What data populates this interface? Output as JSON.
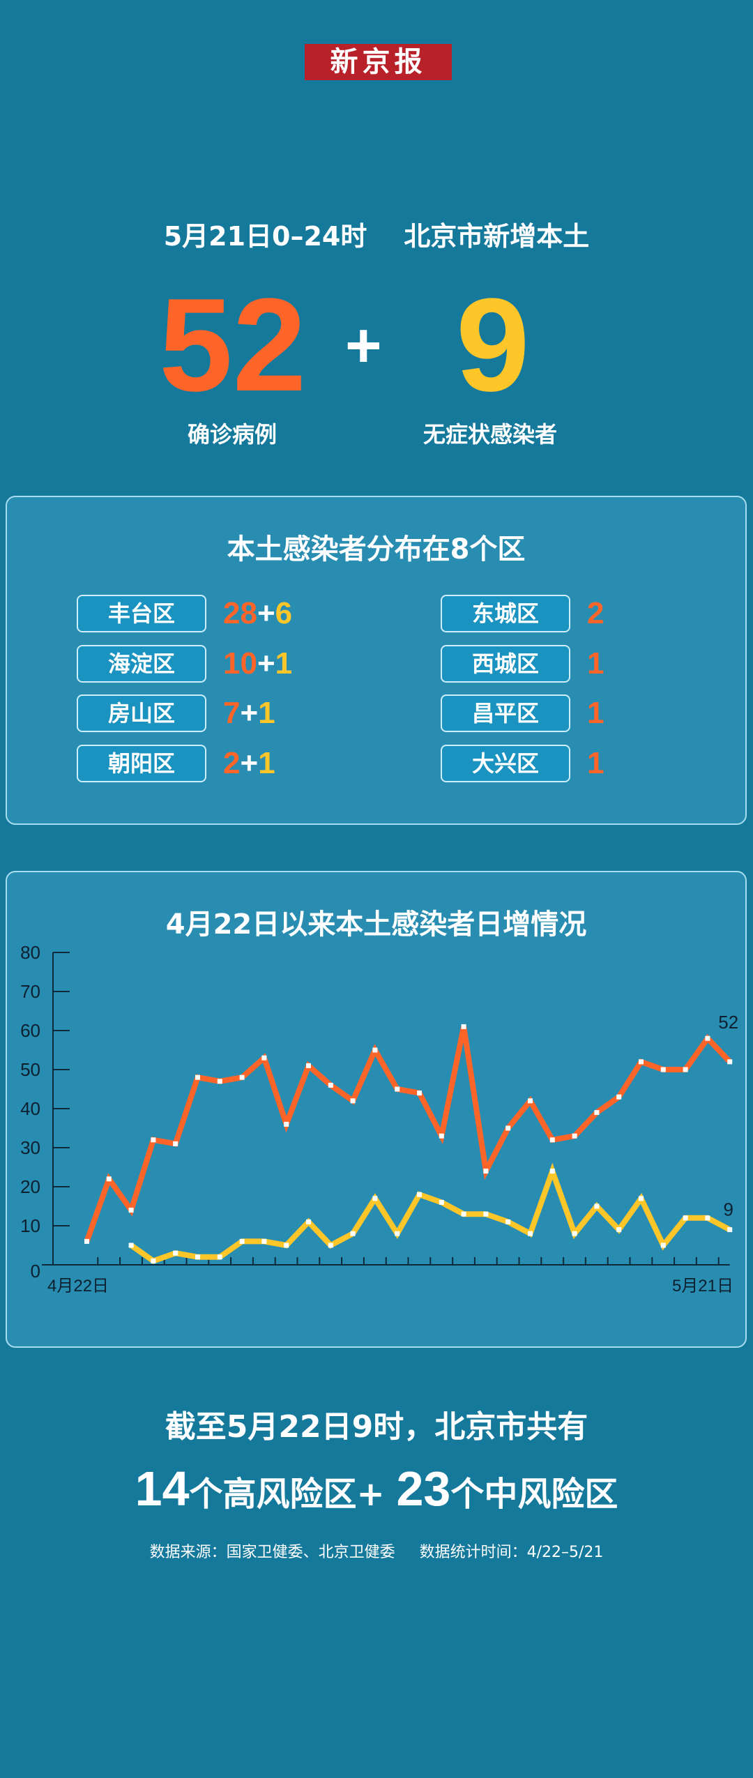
{
  "logo": "新京报",
  "header": {
    "time": "5月21日0–24时",
    "subject": "北京市新增本土"
  },
  "totals": {
    "confirmed": "52",
    "confirmed_label": "确诊病例",
    "plus": "+",
    "asymptomatic": "9",
    "asymptomatic_label": "无症状感染者"
  },
  "distribution": {
    "title": "本土感染者分布在8个区",
    "left": [
      {
        "name": "丰台区",
        "confirmed": "28",
        "asymptomatic": "6"
      },
      {
        "name": "海淀区",
        "confirmed": "10",
        "asymptomatic": "1"
      },
      {
        "name": "房山区",
        "confirmed": "7",
        "asymptomatic": "1"
      },
      {
        "name": "朝阳区",
        "confirmed": "2",
        "asymptomatic": "1"
      }
    ],
    "right": [
      {
        "name": "东城区",
        "confirmed": "2"
      },
      {
        "name": "西城区",
        "confirmed": "1"
      },
      {
        "name": "昌平区",
        "confirmed": "1"
      },
      {
        "name": "大兴区",
        "confirmed": "1"
      }
    ],
    "plus": "+"
  },
  "chart_data": {
    "type": "line",
    "title": "4月22日以来本土感染者日增情况",
    "x_labels": [
      "4月22日",
      "5月21日"
    ],
    "ylim": [
      0,
      80
    ],
    "yticks": [
      "0",
      "10",
      "20",
      "30",
      "40",
      "50",
      "60",
      "70",
      "80"
    ],
    "grid": false,
    "series": [
      {
        "color": "#ff6428",
        "start_index": 0,
        "end_label": "52",
        "values": [
          6,
          22,
          14,
          32,
          31,
          48,
          47,
          48,
          53,
          36,
          51,
          46,
          42,
          55,
          45,
          44,
          33,
          61,
          24,
          35,
          42,
          32,
          33,
          39,
          43,
          52,
          50,
          50,
          58,
          52
        ]
      },
      {
        "color": "#ffc629",
        "start_index": 2,
        "end_label": "9",
        "values": [
          5,
          1,
          3,
          2,
          2,
          6,
          6,
          5,
          11,
          5,
          8,
          17,
          8,
          18,
          16,
          13,
          13,
          11,
          8,
          24,
          8,
          15,
          9,
          17,
          5,
          12,
          12,
          9
        ]
      }
    ]
  },
  "risk": {
    "line1": "截至5月22日9时，北京市共有",
    "high_count": "14",
    "high_label": "个高风险区+",
    "mid_count": "23",
    "mid_label": "个中风险区"
  },
  "source": {
    "text": "数据来源：国家卫健委、北京卫健委",
    "period": "数据统计时间：4/22–5/21"
  },
  "colors": {
    "background": "#15799c",
    "confirmed": "#ff6428",
    "asymptomatic": "#ffc629",
    "logo": "#b8202a"
  }
}
